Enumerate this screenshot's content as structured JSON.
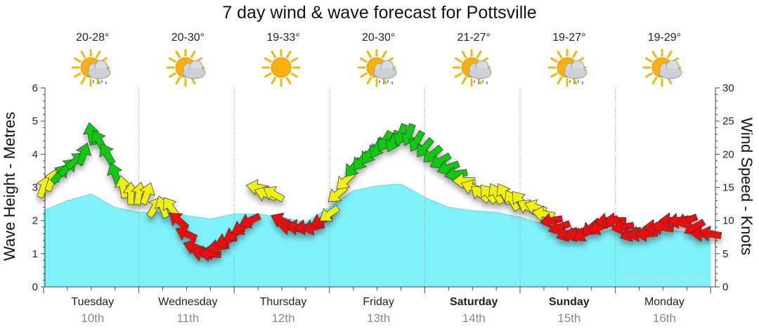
{
  "chart_data": {
    "type": "area",
    "title": "7 day wind & wave forecast for Pottsville",
    "ylabel_left": "Wave Height - Metres",
    "ylabel_right": "Wind Speed - Knots",
    "ylim_left": [
      0,
      6
    ],
    "ylim_right": [
      0,
      30
    ],
    "yticks_left": [
      "0",
      "1",
      "2",
      "3",
      "4",
      "5",
      "6"
    ],
    "yticks_right": [
      "0",
      "5",
      "10",
      "15",
      "20",
      "25",
      "30"
    ],
    "x_unit": "hours from start of Tuesday 10th",
    "days": [
      {
        "name": "Tuesday",
        "date": "10th",
        "temp": "20-28°",
        "icon": "cloud-sun-rain-icon",
        "bold": false
      },
      {
        "name": "Wednesday",
        "date": "11th",
        "temp": "20-30°",
        "icon": "cloud-sun-icon",
        "bold": false
      },
      {
        "name": "Thursday",
        "date": "12th",
        "temp": "19-33°",
        "icon": "sun-icon",
        "bold": false
      },
      {
        "name": "Friday",
        "date": "13th",
        "temp": "20-30°",
        "icon": "cloud-sun-rain-icon",
        "bold": false
      },
      {
        "name": "Saturday",
        "date": "14th",
        "temp": "21-27°",
        "icon": "cloud-sun-rain-icon",
        "bold": true
      },
      {
        "name": "Sunday",
        "date": "15th",
        "temp": "19-27°",
        "icon": "cloud-sun-rain-icon",
        "bold": true
      },
      {
        "name": "Monday",
        "date": "16th",
        "temp": "19-29°",
        "icon": "cloud-sun-icon",
        "bold": false
      }
    ],
    "wave_series": {
      "name": "Wave Height",
      "x": [
        0,
        6,
        12,
        18,
        24,
        30,
        36,
        42,
        48,
        54,
        60,
        66,
        72,
        78,
        84,
        90,
        96,
        102,
        108,
        114,
        120,
        126,
        132,
        138,
        144,
        150,
        156,
        162,
        168
      ],
      "values": [
        2.3,
        2.6,
        2.8,
        2.4,
        2.25,
        2.25,
        2.15,
        2.05,
        2.2,
        2.2,
        2.1,
        1.95,
        2.4,
        2.9,
        3.05,
        3.1,
        2.7,
        2.4,
        2.3,
        2.25,
        2.1,
        1.9,
        1.7,
        1.6,
        1.75,
        1.8,
        1.75,
        1.65,
        1.6
      ]
    },
    "wind_series": {
      "name": "Wind Speed",
      "x": [
        0,
        2,
        4,
        6,
        8,
        10,
        12,
        14,
        16,
        18,
        20,
        22,
        24,
        26,
        28,
        30,
        32,
        34,
        36,
        38,
        40,
        42,
        44,
        46,
        48,
        50,
        52,
        54,
        56,
        58,
        60,
        62,
        64,
        66,
        68,
        70,
        72,
        74,
        76,
        78,
        80,
        82,
        84,
        86,
        88,
        90,
        92,
        94,
        96,
        98,
        100,
        102,
        104,
        106,
        108,
        110,
        112,
        114,
        116,
        118,
        120,
        122,
        124,
        126,
        128,
        130,
        132,
        134,
        136,
        138,
        140,
        142,
        144,
        146,
        148,
        150,
        152,
        154,
        156,
        158,
        160,
        162,
        164,
        166,
        168
      ],
      "values": [
        15,
        16,
        17,
        18,
        19,
        20,
        23,
        22,
        20,
        17,
        15,
        14,
        14,
        14,
        12,
        12,
        12,
        10,
        8,
        6,
        5,
        5,
        6,
        7,
        8,
        9,
        10,
        15,
        14,
        14,
        10,
        9,
        9,
        9,
        9,
        10,
        11,
        14,
        16,
        18,
        19,
        20,
        21,
        22,
        22,
        23,
        23,
        22,
        21,
        20,
        19,
        18,
        17,
        16,
        15,
        14,
        14,
        14,
        14,
        13,
        13,
        12,
        12,
        11,
        10,
        9,
        8,
        8,
        8,
        9,
        9,
        10,
        10,
        9,
        8,
        8,
        8,
        9,
        9,
        10,
        10,
        10,
        9,
        8,
        8
      ],
      "directions_deg": [
        200,
        200,
        220,
        225,
        230,
        200,
        170,
        150,
        150,
        160,
        170,
        180,
        190,
        200,
        210,
        160,
        145,
        130,
        115,
        110,
        105,
        95,
        80,
        70,
        60,
        60,
        65,
        100,
        110,
        120,
        115,
        100,
        95,
        85,
        75,
        65,
        55,
        50,
        45,
        40,
        40,
        35,
        30,
        30,
        25,
        20,
        20,
        30,
        40,
        50,
        60,
        70,
        80,
        90,
        110,
        130,
        140,
        150,
        150,
        150,
        140,
        120,
        110,
        100,
        80,
        70,
        70,
        70,
        60,
        50,
        70,
        80,
        90,
        80,
        70,
        80,
        85,
        90,
        100,
        90,
        80,
        70,
        60,
        90,
        100
      ],
      "color_bands": [
        {
          "min": 0,
          "max": 11,
          "color": "#ee1111"
        },
        {
          "min": 11,
          "max": 17,
          "color": "#f0f011"
        },
        {
          "min": 17,
          "max": 99,
          "color": "#11cc11"
        }
      ]
    },
    "watermark": "www.seabreeze.com.au",
    "colors": {
      "wave_fill": "#7ff1f9",
      "wave_stroke": "#5fdde8",
      "arrow_stroke": "#333333"
    }
  }
}
